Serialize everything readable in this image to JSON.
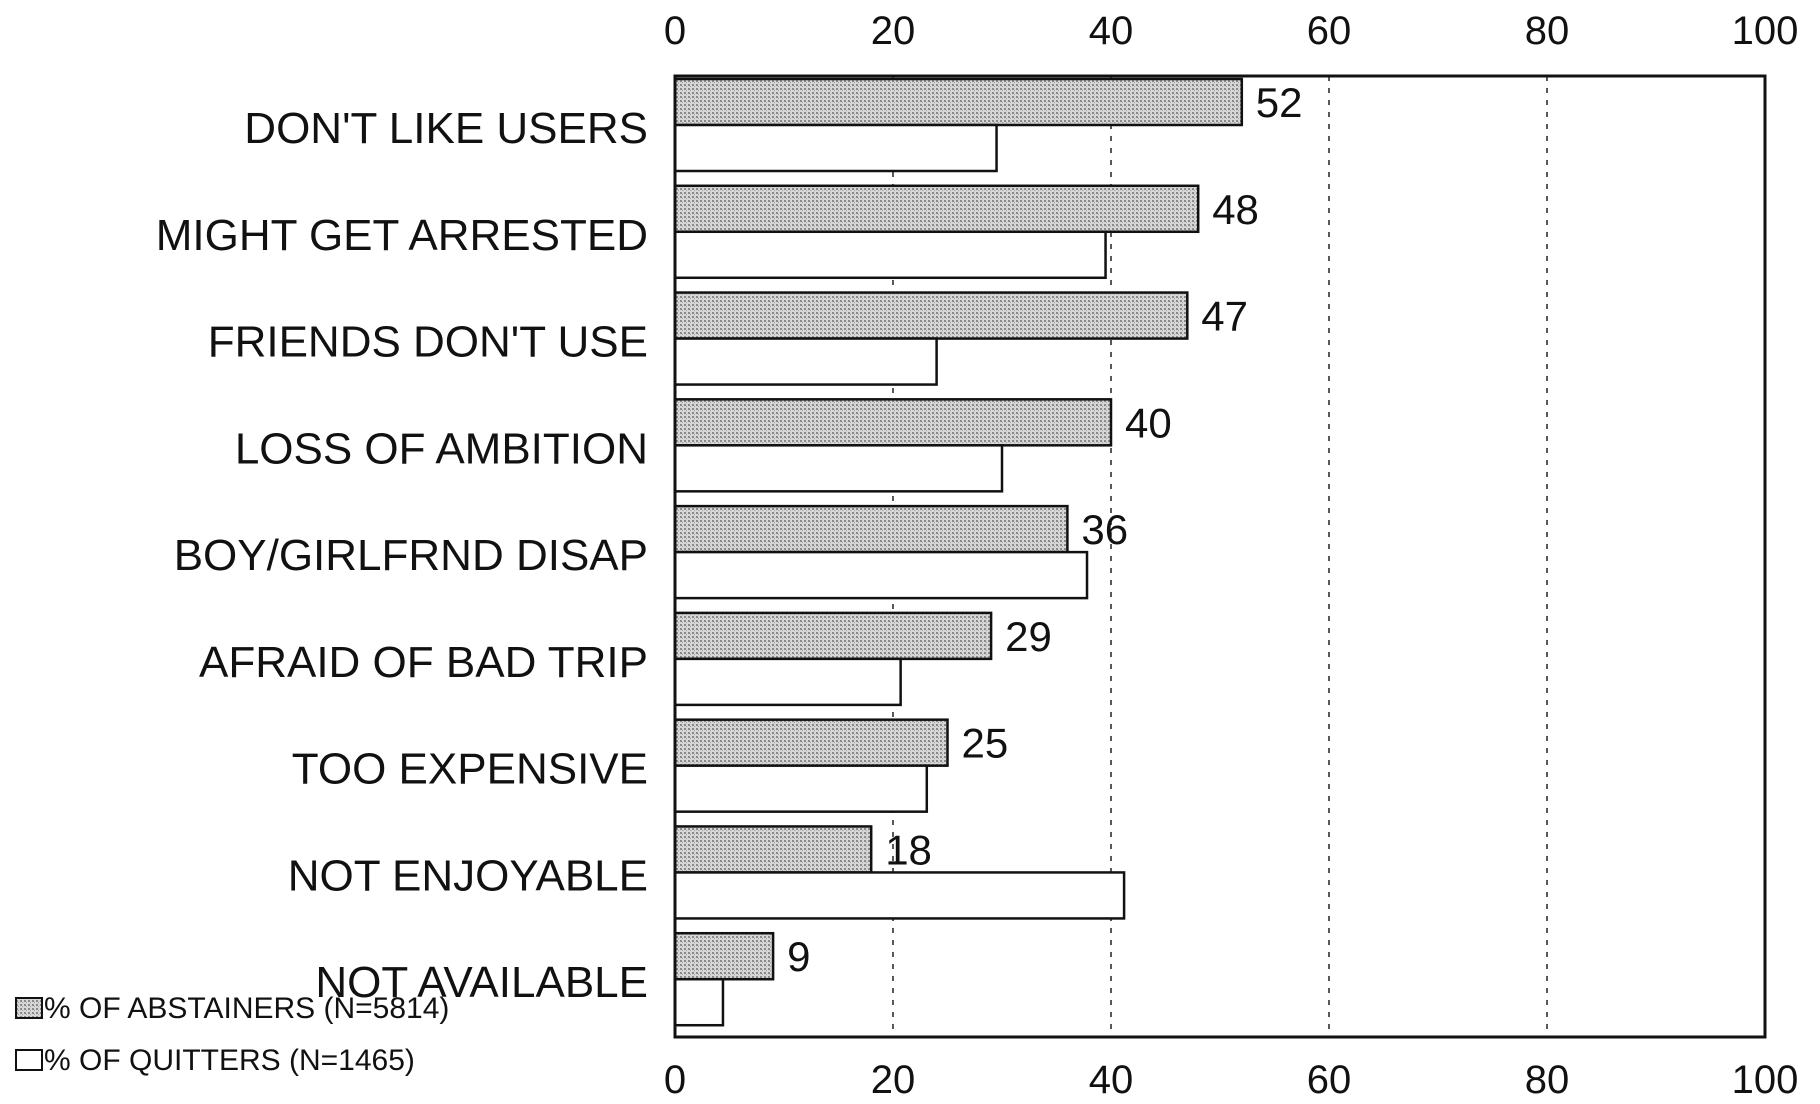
{
  "chart_data": {
    "type": "bar",
    "orientation": "horizontal",
    "title": "",
    "xlabel": "",
    "ylabel": "",
    "xlim": [
      0,
      100
    ],
    "x_ticks": [
      0,
      20,
      40,
      60,
      80,
      100
    ],
    "x_tick_labels": [
      "0",
      "20",
      "40",
      "60",
      "80",
      "100"
    ],
    "grid": "vertical dashed",
    "legend_position": "bottom-left",
    "categories": [
      "DON'T LIKE USERS",
      "MIGHT GET ARRESTED",
      "FRIENDS DON'T USE",
      "LOSS OF AMBITION",
      "BOY/GIRLFRND DISAP",
      "AFRAID OF BAD TRIP",
      "TOO EXPENSIVE",
      "NOT ENJOYABLE",
      "NOT AVAILABLE"
    ],
    "series": [
      {
        "name": "% OF ABSTAINERS (N=5814)",
        "legend_icon": "stippled-square",
        "fill": "#c8c8c8",
        "values": [
          52,
          48,
          47,
          40,
          36,
          29,
          25,
          18,
          9
        ],
        "data_labels": [
          "52",
          "48",
          "47",
          "40",
          "36",
          "29",
          "25",
          "18",
          "9"
        ]
      },
      {
        "name": "% OF QUITTERS (N=1465)",
        "legend_icon": "empty-square",
        "fill": "#ffffff",
        "values": [
          29.5,
          39.5,
          24,
          30,
          37.8,
          20.7,
          23.1,
          41.2,
          4.4
        ],
        "data_labels": []
      }
    ]
  }
}
